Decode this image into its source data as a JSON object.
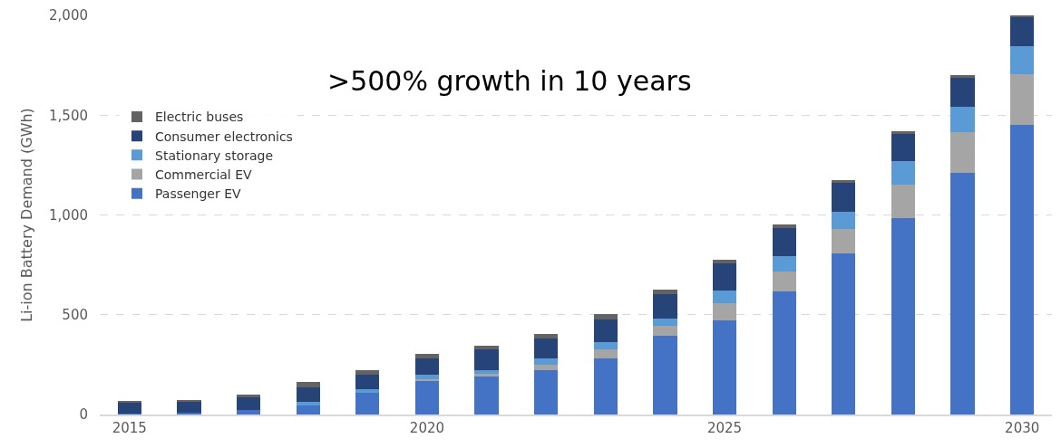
{
  "chart_data": {
    "type": "bar",
    "stacked": true,
    "ylabel": "Li-ion Battery Demand (GWh)",
    "annotations": [
      ">500% growth in 10 years"
    ],
    "x": [
      2015,
      2016,
      2017,
      2018,
      2019,
      2020,
      2021,
      2022,
      2023,
      2024,
      2025,
      2026,
      2027,
      2028,
      2029,
      2030
    ],
    "xlim": [
      2014.5,
      2030.5
    ],
    "xticks": [
      2015,
      2020,
      2025,
      2030
    ],
    "ylim": [
      0,
      2000
    ],
    "yticks": [
      0,
      500,
      {
        "value": 1000,
        "label": "1,000"
      },
      {
        "value": 1500,
        "label": "1,500"
      },
      {
        "value": 2000,
        "label": "2,000"
      }
    ],
    "grid": "y",
    "legend": "left",
    "series": [
      {
        "name": "Passenger EV",
        "color": "#4472c4",
        "values": [
          4,
          9,
          21,
          45,
          107,
          169,
          190,
          220,
          281,
          395,
          473,
          618,
          808,
          983,
          1213,
          1453
        ]
      },
      {
        "name": "Commercial EV",
        "color": "#a5a5a5",
        "values": [
          0,
          0,
          0,
          0,
          0,
          9,
          15,
          29,
          46,
          49,
          85,
          100,
          121,
          169,
          200,
          254
        ]
      },
      {
        "name": "Stationary storage",
        "color": "#5b9bd5",
        "values": [
          0,
          0,
          0,
          20,
          21,
          21,
          18,
          32,
          38,
          35,
          65,
          76,
          88,
          119,
          130,
          140
        ]
      },
      {
        "name": "Consumer electronics",
        "color": "#264478",
        "values": [
          55,
          56,
          65,
          73,
          70,
          82,
          103,
          99,
          111,
          126,
          134,
          140,
          145,
          136,
          145,
          143
        ]
      },
      {
        "name": "Electric buses",
        "color": "#636363",
        "values": [
          8,
          9,
          14,
          27,
          24,
          21,
          20,
          24,
          27,
          20,
          18,
          18,
          12,
          14,
          13,
          10
        ]
      }
    ]
  }
}
